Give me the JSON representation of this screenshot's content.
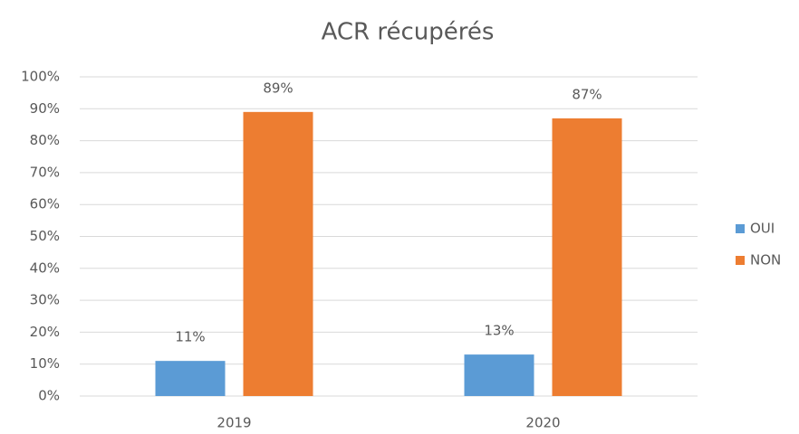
{
  "chart_data": {
    "type": "bar",
    "title": "ACR récupérés",
    "categories": [
      "2019",
      "2020"
    ],
    "series": [
      {
        "name": "OUI",
        "color": "#5b9bd5",
        "values": [
          11,
          13
        ],
        "value_labels": [
          "11%",
          "13%"
        ]
      },
      {
        "name": "NON",
        "color": "#ed7d31",
        "values": [
          89,
          87
        ],
        "value_labels": [
          "89%",
          "87%"
        ]
      }
    ],
    "ylim": [
      0,
      100
    ],
    "yticks": [
      {
        "value": 0,
        "label": "0%"
      },
      {
        "value": 10,
        "label": "10%"
      },
      {
        "value": 20,
        "label": "20%"
      },
      {
        "value": 30,
        "label": "30%"
      },
      {
        "value": 40,
        "label": "40%"
      },
      {
        "value": 50,
        "label": "50%"
      },
      {
        "value": 60,
        "label": "60%"
      },
      {
        "value": 70,
        "label": "70%"
      },
      {
        "value": 80,
        "label": "80%"
      },
      {
        "value": 90,
        "label": "90%"
      },
      {
        "value": 100,
        "label": "100%"
      }
    ],
    "grid": true,
    "legend": "right"
  }
}
